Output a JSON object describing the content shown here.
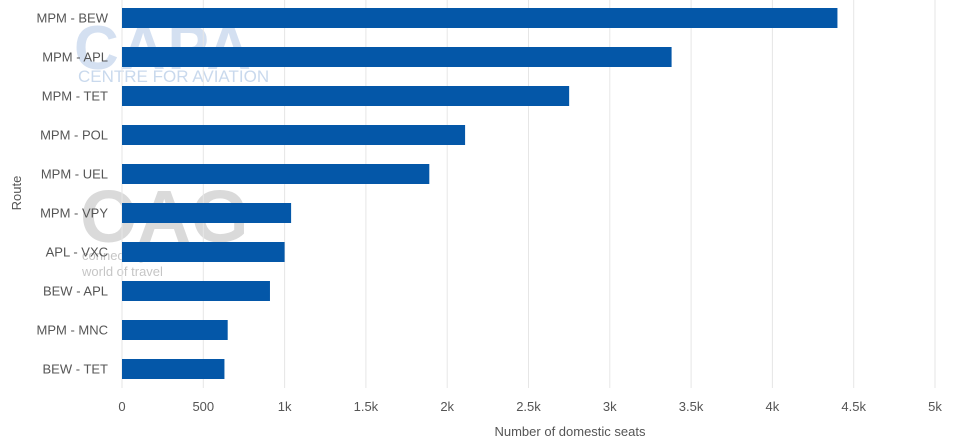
{
  "watermarks": {
    "capa": "CAPA",
    "capa_sub": "CENTRE FOR AVIATION",
    "oag": "OAG",
    "oag_tag1": "connecting the",
    "oag_tag2": "world of travel"
  },
  "colors": {
    "bar": "#0457a8",
    "grid": "#e6e6e6",
    "text": "#555555"
  },
  "chart_data": {
    "type": "bar",
    "orientation": "horizontal",
    "categories": [
      "MPM - BEW",
      "MPM - APL",
      "MPM - TET",
      "MPM - POL",
      "MPM - UEL",
      "MPM - VPY",
      "APL - VXC",
      "BEW - APL",
      "MPM - MNC",
      "BEW - TET"
    ],
    "values": [
      4400,
      3380,
      2750,
      2110,
      1890,
      1040,
      1000,
      910,
      650,
      630
    ],
    "xlim": [
      0,
      5000
    ],
    "xticks": [
      0,
      500,
      1000,
      1500,
      2000,
      2500,
      3000,
      3500,
      4000,
      4500,
      5000
    ],
    "xtick_labels": [
      "0",
      "500",
      "1k",
      "1.5k",
      "2k",
      "2.5k",
      "3k",
      "3.5k",
      "4k",
      "4.5k",
      "5k"
    ],
    "xlabel": "Number of domestic seats",
    "ylabel": "Route",
    "grid": true
  }
}
